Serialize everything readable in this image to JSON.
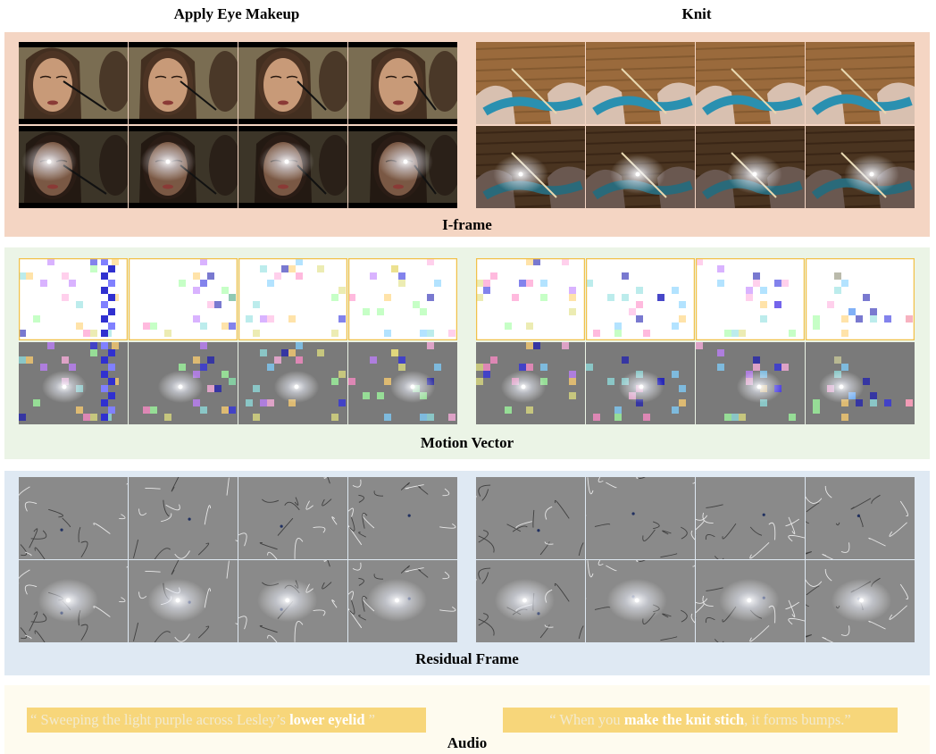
{
  "titles": {
    "left": "Apply Eye Makeup",
    "right": "Knit"
  },
  "bands": {
    "iframe": {
      "label": "I-frame",
      "color": "#f4d5c3"
    },
    "motion": {
      "label": "Motion Vector",
      "color": "#ebf4e6"
    },
    "residual": {
      "label": "Residual Frame",
      "color": "#dfe9f3"
    },
    "audio": {
      "label": "Audio",
      "color": "#fefbef"
    }
  },
  "audio": {
    "left": {
      "open": "“ Sweeping the light purple across Lesley’s ",
      "highlight": "lower eyelid",
      "close": " ”"
    },
    "right": {
      "open": "“ When you ",
      "highlight": "make the knit stich",
      "close": ", it forms bumps.”"
    }
  },
  "colors": {
    "mv_border": "#f1c14a",
    "audio_box": "#f7d67a"
  },
  "icons": {
    "frame": "video-frame-thumbnail"
  }
}
